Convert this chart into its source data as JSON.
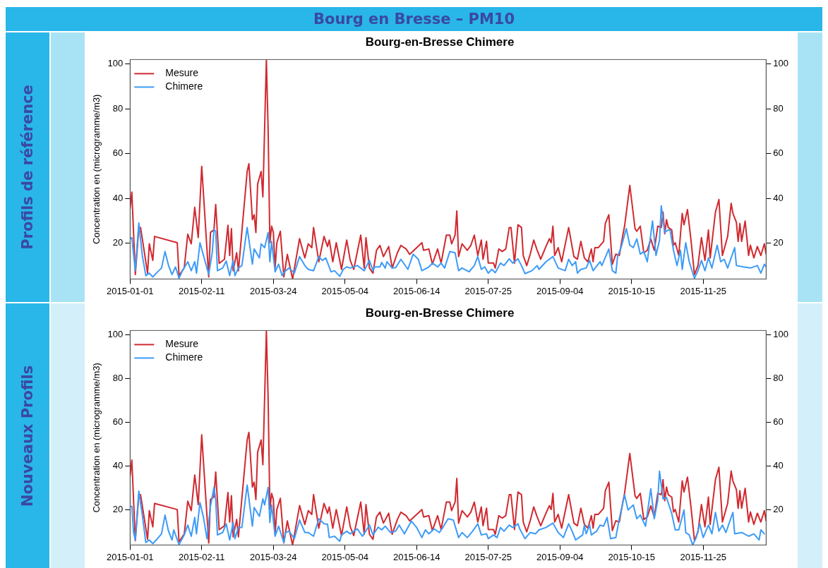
{
  "chart_data": [
    {
      "type": "line",
      "title": "Bourg-en-Bresse Chimere",
      "ylabel": "Concentration en (microgramme/m3)",
      "legend": "top left",
      "annotations": [
        "Bourg en Bresse – PM10",
        "Profils de référence"
      ],
      "xlim": [
        "2015-01-01",
        "2015-12-31"
      ],
      "xticks": [
        "2015-01-01",
        "2015-02-11",
        "2015-03-24",
        "2015-05-04",
        "2015-06-14",
        "2015-07-25",
        "2015-09-04",
        "2015-10-15",
        "2015-11-25"
      ],
      "ylim": [
        4,
        102
      ],
      "yticks": [
        20,
        40,
        60,
        80,
        100
      ],
      "y2lim": [
        4,
        102
      ],
      "y2ticks": [
        20,
        40,
        60,
        80,
        100
      ],
      "series": [
        {
          "name": "Mesure",
          "color": "#d0292f",
          "x": [
            "2015-01-01",
            "2015-01-02",
            "2015-01-04",
            "2015-01-06",
            "2015-01-07",
            "2015-01-11",
            "2015-01-12",
            "2015-01-14",
            "2015-01-15",
            "2015-01-28",
            "2015-01-29",
            "2015-02-01",
            "2015-02-03",
            "2015-02-05",
            "2015-02-07",
            "2015-02-09",
            "2015-02-11",
            "2015-02-15",
            "2015-02-16",
            "2015-02-18",
            "2015-02-19",
            "2015-02-21",
            "2015-02-24",
            "2015-02-26",
            "2015-02-27",
            "2015-02-28",
            "2015-03-01",
            "2015-03-03",
            "2015-03-04",
            "2015-03-09",
            "2015-03-10",
            "2015-03-12",
            "2015-03-13",
            "2015-03-14",
            "2015-03-15",
            "2015-03-17",
            "2015-03-18",
            "2015-03-20",
            "2015-03-21",
            "2015-03-22",
            "2015-03-23",
            "2015-03-24",
            "2015-03-25",
            "2015-03-26",
            "2015-03-28",
            "2015-03-30",
            "2015-04-01",
            "2015-04-04",
            "2015-04-08",
            "2015-04-11",
            "2015-04-13",
            "2015-04-15",
            "2015-04-16",
            "2015-04-19",
            "2015-04-22",
            "2015-04-24",
            "2015-04-25",
            "2015-04-27",
            "2015-04-29",
            "2015-05-02",
            "2015-05-05",
            "2015-05-07",
            "2015-05-09",
            "2015-05-13",
            "2015-05-15",
            "2015-05-16",
            "2015-05-18",
            "2015-05-20",
            "2015-05-22",
            "2015-05-24",
            "2015-05-26",
            "2015-05-29",
            "2015-05-31",
            "2015-06-03",
            "2015-06-05",
            "2015-06-08",
            "2015-06-10",
            "2015-06-17",
            "2015-06-18",
            "2015-06-21",
            "2015-06-23",
            "2015-06-26",
            "2015-06-28",
            "2015-07-01",
            "2015-07-03",
            "2015-07-04",
            "2015-07-06",
            "2015-07-07",
            "2015-07-08",
            "2015-07-10",
            "2015-07-13",
            "2015-07-15",
            "2015-07-17",
            "2015-07-19",
            "2015-07-21",
            "2015-07-22",
            "2015-07-24",
            "2015-07-25",
            "2015-07-28",
            "2015-07-29",
            "2015-07-31",
            "2015-08-02",
            "2015-08-04",
            "2015-08-06",
            "2015-08-07",
            "2015-08-09",
            "2015-08-11",
            "2015-08-13",
            "2015-08-14",
            "2015-08-16",
            "2015-08-18",
            "2015-08-20",
            "2015-08-22",
            "2015-08-24",
            "2015-08-27",
            "2015-08-29",
            "2015-08-30",
            "2015-08-31",
            "2015-09-01",
            "2015-09-03",
            "2015-09-05",
            "2015-09-09",
            "2015-09-12",
            "2015-09-14",
            "2015-09-16",
            "2015-09-18",
            "2015-09-20",
            "2015-09-22",
            "2015-09-23",
            "2015-09-24",
            "2015-09-26",
            "2015-09-29",
            "2015-09-30",
            "2015-10-02",
            "2015-10-04",
            "2015-10-06",
            "2015-10-08",
            "2015-10-10",
            "2015-10-11",
            "2015-10-14",
            "2015-10-17",
            "2015-10-18",
            "2015-10-20",
            "2015-10-22",
            "2015-10-24",
            "2015-10-26",
            "2015-10-28",
            "2015-10-30",
            "2015-11-01",
            "2015-11-02",
            "2015-11-03",
            "2015-11-04",
            "2015-11-05",
            "2015-11-07",
            "2015-11-08",
            "2015-11-09",
            "2015-11-11",
            "2015-11-13",
            "2015-11-14",
            "2015-11-16",
            "2015-11-18",
            "2015-11-20",
            "2015-11-22",
            "2015-11-24",
            "2015-11-26",
            "2015-11-28",
            "2015-11-29",
            "2015-12-02",
            "2015-12-04",
            "2015-12-06",
            "2015-12-09",
            "2015-12-11",
            "2015-12-12",
            "2015-12-14",
            "2015-12-15",
            "2015-12-16",
            "2015-12-17",
            "2015-12-19",
            "2015-12-21",
            "2015-12-22",
            "2015-12-24",
            "2015-12-26",
            "2015-12-28",
            "2015-12-30",
            "2015-12-31"
          ],
          "values": [
            35.4,
            42.8,
            6,
            27,
            27,
            6.6,
            19.7,
            12.3,
            23,
            20.2,
            5.5,
            9,
            24,
            19.7,
            36,
            22.5,
            54.3,
            4.9,
            24.8,
            26,
            37.3,
            11,
            12.8,
            28,
            14.5,
            26.5,
            7.7,
            15.7,
            7.7,
            52,
            55.5,
            30.5,
            32.7,
            24.8,
            46.4,
            52,
            40.7,
            102,
            71,
            20.2,
            27.6,
            24.8,
            8.9,
            20.2,
            25.3,
            4.9,
            15,
            4,
            22,
            13.4,
            19.7,
            18,
            27,
            11.7,
            23,
            18.5,
            21.4,
            11.7,
            20.2,
            8.3,
            21.4,
            12.3,
            8.3,
            23.6,
            8.9,
            22.5,
            8.9,
            6.6,
            16.8,
            19,
            14,
            18.5,
            8.9,
            15.7,
            19,
            17.4,
            15,
            20.2,
            16.8,
            17.4,
            10.6,
            17.4,
            11.1,
            23.6,
            23.6,
            19.7,
            23.6,
            34.4,
            14,
            19.7,
            16.8,
            19,
            23.6,
            14.5,
            21.4,
            12.8,
            20.8,
            11.1,
            11.1,
            8.9,
            17.4,
            16.3,
            17.4,
            27,
            27,
            11.1,
            28.2,
            27,
            14.5,
            10,
            15.1,
            21.4,
            16.8,
            12.8,
            18.5,
            22,
            20.2,
            27.6,
            14.5,
            18,
            11.7,
            27,
            14,
            12.8,
            20.8,
            13.4,
            11.7,
            17.4,
            11.7,
            18,
            18,
            20.8,
            28.8,
            32.7,
            10.6,
            15.1,
            14.5,
            23.6,
            27.6,
            45.8,
            26.5,
            25.3,
            27.6,
            15.7,
            16.8,
            21.9,
            16.8,
            27.6,
            27,
            33.9,
            24.2,
            30.5,
            27,
            25.9,
            19.1,
            20.2,
            14.5,
            33.3,
            28.2,
            35,
            21.4,
            6,
            10,
            22.5,
            12.3,
            25.9,
            13.4,
            33.9,
            39.5,
            14.5,
            23,
            37.8,
            33.3,
            29.3,
            20.8,
            28.8,
            20.8,
            29.9,
            14.5,
            19.1,
            13.4,
            18.5,
            14.5,
            19.7,
            15.1
          ]
        },
        {
          "name": "Chimere",
          "color": "#3d9bf7",
          "x": [
            "2015-01-01",
            "2015-01-02",
            "2015-01-04",
            "2015-01-06",
            "2015-01-08",
            "2015-01-10",
            "2015-01-12",
            "2015-01-14",
            "2015-01-16",
            "2015-01-19",
            "2015-01-21",
            "2015-01-23",
            "2015-01-25",
            "2015-01-27",
            "2015-01-29",
            "2015-01-31",
            "2015-02-03",
            "2015-02-05",
            "2015-02-07",
            "2015-02-08",
            "2015-02-10",
            "2015-02-12",
            "2015-02-15",
            "2015-02-17",
            "2015-02-18",
            "2015-02-19",
            "2015-02-20",
            "2015-02-23",
            "2015-02-25",
            "2015-02-27",
            "2015-03-01",
            "2015-03-02",
            "2015-03-04",
            "2015-03-06",
            "2015-03-09",
            "2015-03-12",
            "2015-03-13",
            "2015-03-16",
            "2015-03-17",
            "2015-03-19",
            "2015-03-21",
            "2015-03-22",
            "2015-03-23",
            "2015-03-25",
            "2015-03-27",
            "2015-03-29",
            "2015-03-31",
            "2015-04-02",
            "2015-04-05",
            "2015-04-08",
            "2015-04-11",
            "2015-04-13",
            "2015-04-16",
            "2015-04-19",
            "2015-04-21",
            "2015-04-23",
            "2015-04-26",
            "2015-04-28",
            "2015-05-01",
            "2015-05-03",
            "2015-05-05",
            "2015-05-07",
            "2015-05-11",
            "2015-05-15",
            "2015-05-18",
            "2015-05-20",
            "2015-05-21",
            "2015-05-24",
            "2015-05-25",
            "2015-05-27",
            "2015-05-28",
            "2015-05-31",
            "2015-06-02",
            "2015-06-05",
            "2015-06-09",
            "2015-06-12",
            "2015-06-15",
            "2015-06-17",
            "2015-06-21",
            "2015-06-23",
            "2015-06-26",
            "2015-06-28",
            "2015-06-30",
            "2015-07-03",
            "2015-07-06",
            "2015-07-08",
            "2015-07-10",
            "2015-07-14",
            "2015-07-17",
            "2015-07-19",
            "2015-07-21",
            "2015-07-23",
            "2015-07-25",
            "2015-07-27",
            "2015-07-29",
            "2015-08-01",
            "2015-08-03",
            "2015-08-06",
            "2015-08-08",
            "2015-08-11",
            "2015-08-13",
            "2015-08-15",
            "2015-08-19",
            "2015-08-22",
            "2015-08-23",
            "2015-08-27",
            "2015-08-31",
            "2015-09-03",
            "2015-09-07",
            "2015-09-09",
            "2015-09-11",
            "2015-09-13",
            "2015-09-14",
            "2015-09-16",
            "2015-09-19",
            "2015-09-21",
            "2015-09-23",
            "2015-09-27",
            "2015-09-28",
            "2015-10-02",
            "2015-10-04",
            "2015-10-06",
            "2015-10-07",
            "2015-10-09",
            "2015-10-12",
            "2015-10-14",
            "2015-10-16",
            "2015-10-18",
            "2015-10-20",
            "2015-10-22",
            "2015-10-24",
            "2015-10-27",
            "2015-10-29",
            "2015-10-31",
            "2015-11-01",
            "2015-11-03",
            "2015-11-05",
            "2015-11-06",
            "2015-11-08",
            "2015-11-10",
            "2015-11-12",
            "2015-11-13",
            "2015-11-15",
            "2015-11-17",
            "2015-11-20",
            "2015-11-22",
            "2015-11-24",
            "2015-11-26",
            "2015-11-28",
            "2015-11-30",
            "2015-12-03",
            "2015-12-05",
            "2015-12-07",
            "2015-12-09",
            "2015-12-13",
            "2015-12-14",
            "2015-12-18",
            "2015-12-22",
            "2015-12-26",
            "2015-12-28",
            "2015-12-30",
            "2015-12-31"
          ],
          "values": [
            22,
            22.5,
            7.7,
            29,
            14.5,
            5.5,
            6.6,
            4.9,
            6.6,
            8.9,
            16.3,
            10,
            6,
            9.4,
            4.3,
            7.7,
            11.7,
            7.7,
            11.7,
            6.6,
            20.2,
            14.5,
            6,
            15.7,
            26,
            25.3,
            7.7,
            8.9,
            12,
            5.5,
            12.3,
            5.5,
            8.9,
            10,
            27,
            10.6,
            17.4,
            13.4,
            19.7,
            18,
            24.8,
            11.7,
            20.8,
            7.2,
            10.6,
            5.5,
            7.7,
            8.9,
            6.6,
            14,
            10,
            8.3,
            7.7,
            14,
            12.3,
            13.4,
            7.2,
            7.7,
            5.2,
            8.3,
            9.4,
            8.9,
            10,
            7.7,
            12.3,
            7.7,
            9.4,
            9.4,
            11.4,
            8.9,
            11.7,
            8.9,
            9.1,
            12.8,
            8.3,
            15.1,
            12.8,
            7.7,
            9.4,
            11.1,
            9.4,
            11.1,
            8.9,
            16.3,
            15.7,
            7.7,
            8.9,
            7.2,
            10,
            14,
            8.3,
            9.4,
            6.6,
            8.3,
            6.8,
            11.1,
            10,
            13,
            11.1,
            13,
            10,
            6.4,
            7.7,
            10,
            8.3,
            11.7,
            14,
            8.9,
            7.7,
            12.8,
            10,
            11.7,
            6.6,
            8.3,
            8.9,
            12.3,
            7.7,
            11.7,
            10,
            17.4,
            7.7,
            6.6,
            14,
            18,
            26.5,
            19.1,
            18,
            21.9,
            15.1,
            16.3,
            11.7,
            29.9,
            14.5,
            21.4,
            36.7,
            24.8,
            25.9,
            25.9,
            16.8,
            10,
            16.8,
            8.3,
            20.2,
            11.7,
            4.3,
            7.7,
            12.3,
            7.7,
            13.4,
            8.9,
            19.1,
            11.7,
            12.8,
            8.9,
            18,
            10,
            9.4,
            8.9,
            10,
            6.6,
            10.6,
            9.4
          ]
        }
      ]
    },
    {
      "type": "line",
      "title": "Bourg-en-Bresse Chimere",
      "ylabel": "Concentration en (microgramme/m3)",
      "legend": "top left",
      "annotations": [
        "Nouveaux Profils"
      ],
      "xlim": [
        "2015-01-01",
        "2015-12-31"
      ],
      "xticks": [
        "2015-01-01",
        "2015-02-11",
        "2015-03-24",
        "2015-05-04",
        "2015-06-14",
        "2015-07-25",
        "2015-09-04",
        "2015-10-15",
        "2015-11-25"
      ],
      "ylim": [
        4,
        102
      ],
      "yticks": [
        20,
        40,
        60,
        80,
        100
      ],
      "y2lim": [
        4,
        102
      ],
      "y2ticks": [
        20,
        40,
        60,
        80,
        100
      ],
      "series": [
        {
          "name": "Mesure",
          "color": "#d0292f",
          "x": [
            "2015-01-01",
            "2015-01-02",
            "2015-01-04",
            "2015-01-06",
            "2015-01-07",
            "2015-01-11",
            "2015-01-12",
            "2015-01-14",
            "2015-01-15",
            "2015-01-28",
            "2015-01-29",
            "2015-02-01",
            "2015-02-03",
            "2015-02-05",
            "2015-02-07",
            "2015-02-09",
            "2015-02-11",
            "2015-02-15",
            "2015-02-16",
            "2015-02-18",
            "2015-02-19",
            "2015-02-21",
            "2015-02-24",
            "2015-02-26",
            "2015-02-27",
            "2015-02-28",
            "2015-03-01",
            "2015-03-03",
            "2015-03-04",
            "2015-03-09",
            "2015-03-10",
            "2015-03-12",
            "2015-03-13",
            "2015-03-14",
            "2015-03-15",
            "2015-03-17",
            "2015-03-18",
            "2015-03-20",
            "2015-03-21",
            "2015-03-22",
            "2015-03-23",
            "2015-03-24",
            "2015-03-25",
            "2015-03-26",
            "2015-03-28",
            "2015-03-30",
            "2015-04-01",
            "2015-04-04",
            "2015-04-08",
            "2015-04-11",
            "2015-04-13",
            "2015-04-15",
            "2015-04-16",
            "2015-04-19",
            "2015-04-22",
            "2015-04-24",
            "2015-04-25",
            "2015-04-27",
            "2015-04-29",
            "2015-05-02",
            "2015-05-05",
            "2015-05-07",
            "2015-05-09",
            "2015-05-13",
            "2015-05-15",
            "2015-05-16",
            "2015-05-18",
            "2015-05-20",
            "2015-05-22",
            "2015-05-24",
            "2015-05-26",
            "2015-05-29",
            "2015-05-31",
            "2015-06-03",
            "2015-06-05",
            "2015-06-08",
            "2015-06-10",
            "2015-06-17",
            "2015-06-18",
            "2015-06-21",
            "2015-06-23",
            "2015-06-26",
            "2015-06-28",
            "2015-07-01",
            "2015-07-03",
            "2015-07-04",
            "2015-07-06",
            "2015-07-07",
            "2015-07-08",
            "2015-07-10",
            "2015-07-13",
            "2015-07-15",
            "2015-07-17",
            "2015-07-19",
            "2015-07-21",
            "2015-07-22",
            "2015-07-24",
            "2015-07-25",
            "2015-07-28",
            "2015-07-29",
            "2015-07-31",
            "2015-08-02",
            "2015-08-04",
            "2015-08-06",
            "2015-08-07",
            "2015-08-09",
            "2015-08-11",
            "2015-08-13",
            "2015-08-14",
            "2015-08-16",
            "2015-08-18",
            "2015-08-20",
            "2015-08-22",
            "2015-08-24",
            "2015-08-27",
            "2015-08-29",
            "2015-08-30",
            "2015-08-31",
            "2015-09-01",
            "2015-09-03",
            "2015-09-05",
            "2015-09-09",
            "2015-09-12",
            "2015-09-14",
            "2015-09-16",
            "2015-09-18",
            "2015-09-20",
            "2015-09-22",
            "2015-09-23",
            "2015-09-24",
            "2015-09-26",
            "2015-09-29",
            "2015-09-30",
            "2015-10-02",
            "2015-10-04",
            "2015-10-06",
            "2015-10-08",
            "2015-10-10",
            "2015-10-11",
            "2015-10-14",
            "2015-10-17",
            "2015-10-18",
            "2015-10-20",
            "2015-10-22",
            "2015-10-24",
            "2015-10-26",
            "2015-10-28",
            "2015-10-30",
            "2015-11-01",
            "2015-11-02",
            "2015-11-03",
            "2015-11-04",
            "2015-11-05",
            "2015-11-07",
            "2015-11-08",
            "2015-11-09",
            "2015-11-11",
            "2015-11-13",
            "2015-11-14",
            "2015-11-16",
            "2015-11-18",
            "2015-11-20",
            "2015-11-22",
            "2015-11-24",
            "2015-11-26",
            "2015-11-28",
            "2015-11-29",
            "2015-12-02",
            "2015-12-04",
            "2015-12-06",
            "2015-12-09",
            "2015-12-11",
            "2015-12-12",
            "2015-12-14",
            "2015-12-15",
            "2015-12-16",
            "2015-12-17",
            "2015-12-19",
            "2015-12-21",
            "2015-12-22",
            "2015-12-24",
            "2015-12-26",
            "2015-12-28",
            "2015-12-30",
            "2015-12-31"
          ],
          "values": [
            35.4,
            42.8,
            6,
            27,
            27,
            6.6,
            19.7,
            12.3,
            23,
            20.2,
            5.5,
            9,
            24,
            19.7,
            36,
            22.5,
            54.3,
            4.9,
            24.8,
            26,
            37.3,
            11,
            12.8,
            28,
            14.5,
            26.5,
            7.7,
            15.7,
            7.7,
            52,
            55.5,
            30.5,
            32.7,
            24.8,
            46.4,
            52,
            40.7,
            102,
            71,
            20.2,
            27.6,
            24.8,
            8.9,
            20.2,
            25.3,
            4.9,
            15,
            4,
            22,
            13.4,
            19.7,
            18,
            27,
            11.7,
            23,
            18.5,
            21.4,
            11.7,
            20.2,
            8.3,
            21.4,
            12.3,
            8.3,
            23.6,
            8.9,
            22.5,
            8.9,
            6.6,
            16.8,
            19,
            14,
            18.5,
            8.9,
            15.7,
            19,
            17.4,
            15,
            20.2,
            16.8,
            17.4,
            10.6,
            17.4,
            11.1,
            23.6,
            23.6,
            19.7,
            23.6,
            34.4,
            14,
            19.7,
            16.8,
            19,
            23.6,
            14.5,
            21.4,
            12.8,
            20.8,
            11.1,
            11.1,
            8.9,
            17.4,
            16.3,
            17.4,
            27,
            27,
            11.1,
            28.2,
            27,
            14.5,
            10,
            15.1,
            21.4,
            16.8,
            12.8,
            18.5,
            22,
            20.2,
            27.6,
            14.5,
            18,
            11.7,
            27,
            14,
            12.8,
            20.8,
            13.4,
            11.7,
            17.4,
            11.7,
            18,
            18,
            20.8,
            28.8,
            32.7,
            10.6,
            15.1,
            14.5,
            23.6,
            27.6,
            45.8,
            26.5,
            25.3,
            27.6,
            15.7,
            16.8,
            21.9,
            16.8,
            27.6,
            27,
            33.9,
            24.2,
            30.5,
            27,
            25.9,
            19.1,
            20.2,
            14.5,
            33.3,
            28.2,
            35,
            21.4,
            6,
            10,
            22.5,
            12.3,
            25.9,
            13.4,
            33.9,
            39.5,
            14.5,
            23,
            37.8,
            33.3,
            29.3,
            20.8,
            28.8,
            20.8,
            29.9,
            14.5,
            19.1,
            13.4,
            18.5,
            14.5,
            19.7,
            15.1
          ]
        },
        {
          "name": "Chimere",
          "color": "#3d9bf7",
          "x": [
            "2015-01-01",
            "2015-01-02",
            "2015-01-03",
            "2015-01-04",
            "2015-01-06",
            "2015-01-08",
            "2015-01-10",
            "2015-01-12",
            "2015-01-14",
            "2015-01-16",
            "2015-01-19",
            "2015-01-21",
            "2015-01-23",
            "2015-01-25",
            "2015-01-26",
            "2015-01-29",
            "2015-02-01",
            "2015-02-03",
            "2015-02-05",
            "2015-02-07",
            "2015-02-08",
            "2015-02-10",
            "2015-02-12",
            "2015-02-14",
            "2015-02-16",
            "2015-02-18",
            "2015-02-19",
            "2015-02-20",
            "2015-02-23",
            "2015-02-25",
            "2015-02-27",
            "2015-03-01",
            "2015-03-02",
            "2015-03-04",
            "2015-03-06",
            "2015-03-09",
            "2015-03-12",
            "2015-03-13",
            "2015-03-16",
            "2015-03-18",
            "2015-03-19",
            "2015-03-21",
            "2015-03-22",
            "2015-03-23",
            "2015-03-25",
            "2015-03-27",
            "2015-03-30",
            "2015-03-31",
            "2015-04-02",
            "2015-04-05",
            "2015-04-08",
            "2015-04-11",
            "2015-04-13",
            "2015-04-16",
            "2015-04-19",
            "2015-04-22",
            "2015-04-24",
            "2015-04-25",
            "2015-04-28",
            "2015-05-01",
            "2015-05-02",
            "2015-05-05",
            "2015-05-07",
            "2015-05-11",
            "2015-05-14",
            "2015-05-18",
            "2015-05-20",
            "2015-05-23",
            "2015-05-25",
            "2015-05-27",
            "2015-05-30",
            "2015-06-02",
            "2015-06-04",
            "2015-06-07",
            "2015-06-11",
            "2015-06-14",
            "2015-06-17",
            "2015-06-19",
            "2015-06-21",
            "2015-06-24",
            "2015-06-27",
            "2015-06-29",
            "2015-07-02",
            "2015-07-05",
            "2015-07-08",
            "2015-07-10",
            "2015-07-13",
            "2015-07-16",
            "2015-07-19",
            "2015-07-21",
            "2015-07-24",
            "2015-07-25",
            "2015-07-28",
            "2015-07-30",
            "2015-08-01",
            "2015-08-03",
            "2015-08-06",
            "2015-08-08",
            "2015-08-11",
            "2015-08-12",
            "2015-08-15",
            "2015-08-18",
            "2015-08-21",
            "2015-08-23",
            "2015-08-27",
            "2015-08-31",
            "2015-09-03",
            "2015-09-06",
            "2015-09-09",
            "2015-09-11",
            "2015-09-13",
            "2015-09-17",
            "2015-09-18",
            "2015-09-19",
            "2015-09-21",
            "2015-09-22",
            "2015-09-25",
            "2015-09-27",
            "2015-09-29",
            "2015-10-01",
            "2015-10-03",
            "2015-10-06",
            "2015-10-08",
            "2015-10-11",
            "2015-10-13",
            "2015-10-16",
            "2015-10-18",
            "2015-10-20",
            "2015-10-23",
            "2015-10-26",
            "2015-10-28",
            "2015-10-30",
            "2015-10-31",
            "2015-11-02",
            "2015-11-04",
            "2015-11-07",
            "2015-11-09",
            "2015-11-11",
            "2015-11-14",
            "2015-11-15",
            "2015-11-17",
            "2015-11-19",
            "2015-11-21",
            "2015-11-23",
            "2015-11-25",
            "2015-11-28",
            "2015-11-30",
            "2015-12-02",
            "2015-12-04",
            "2015-12-06",
            "2015-12-08",
            "2015-12-12",
            "2015-12-13",
            "2015-12-17",
            "2015-12-21",
            "2015-12-24",
            "2015-12-27",
            "2015-12-28",
            "2015-12-30"
          ],
          "values": [
            21.7,
            21.7,
            9.7,
            6.3,
            28.6,
            17.7,
            5.1,
            6.3,
            4.6,
            6.3,
            9.1,
            17.7,
            10.3,
            6.3,
            10.9,
            4.2,
            8.6,
            13.1,
            8,
            16.6,
            9.1,
            23.4,
            16.6,
            6.9,
            21.7,
            30.3,
            24.6,
            8.6,
            9.7,
            13.7,
            6.3,
            14.3,
            6.9,
            12,
            12,
            31.4,
            12.6,
            21.1,
            17.1,
            25.1,
            22.3,
            30.3,
            14.3,
            22.3,
            8,
            12.6,
            5.1,
            9.7,
            10.3,
            6.9,
            15.4,
            9.7,
            9.7,
            8,
            16,
            13.7,
            13.5,
            7.4,
            8,
            5.7,
            8.6,
            10.3,
            9.1,
            11.4,
            8,
            13.1,
            8.6,
            12.2,
            10.9,
            12.6,
            9.7,
            10.3,
            13.1,
            9.1,
            14.9,
            12,
            7.4,
            10.9,
            9.1,
            11.4,
            9.7,
            12,
            16,
            15.4,
            7.4,
            9.7,
            7.4,
            10.3,
            13.7,
            8.6,
            9.1,
            6.9,
            8.6,
            7.4,
            12,
            10.3,
            13.1,
            12,
            13.7,
            11.4,
            6.9,
            9.7,
            9.1,
            10.9,
            12,
            14,
            9.7,
            7.4,
            13.7,
            10.3,
            6.3,
            8.6,
            13.1,
            9.1,
            13.1,
            8.6,
            10.3,
            13.1,
            12.6,
            16.6,
            6.9,
            7.4,
            16,
            26.9,
            20,
            22.3,
            16,
            17.7,
            12.6,
            29.7,
            16,
            24.6,
            37.7,
            25.1,
            25.7,
            18.3,
            10.9,
            10.9,
            20,
            9.7,
            8.6,
            4,
            7.4,
            13.7,
            7.4,
            13.1,
            9.1,
            18.9,
            10.3,
            13.1,
            9.7,
            18.9,
            9.1,
            9.7,
            8,
            9.1,
            6.3,
            10.9,
            9.1
          ]
        }
      ]
    }
  ]
}
